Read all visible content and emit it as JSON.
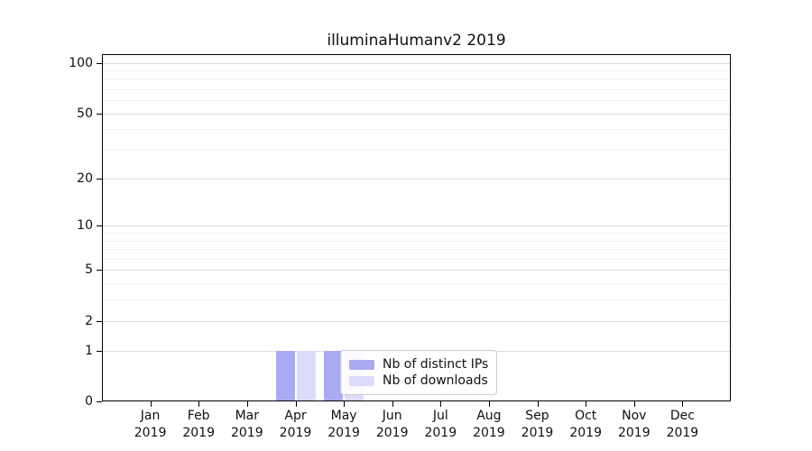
{
  "chart_data": {
    "type": "bar",
    "title": "illuminaHumanv2 2019",
    "categories": [
      "Jan 2019",
      "Feb 2019",
      "Mar 2019",
      "Apr 2019",
      "May 2019",
      "Jun 2019",
      "Jul 2019",
      "Aug 2019",
      "Sep 2019",
      "Oct 2019",
      "Nov 2019",
      "Dec 2019"
    ],
    "series": [
      {
        "name": "Nb of distinct IPs",
        "color": "#aaaaf2",
        "values": [
          0,
          0,
          0,
          1,
          1,
          0,
          0,
          0,
          0,
          0,
          0,
          0
        ]
      },
      {
        "name": "Nb of downloads",
        "color": "#dcdcfa",
        "values": [
          0,
          0,
          0,
          1,
          1,
          0,
          0,
          0,
          0,
          0,
          0,
          0
        ]
      }
    ],
    "xlabel": "",
    "ylabel": "",
    "yscale": "log1p",
    "ylim": [
      0,
      113
    ],
    "yticks_major": [
      0,
      1,
      2,
      5,
      10,
      20,
      50,
      100
    ],
    "yticks_minor": [
      3,
      4,
      6,
      7,
      8,
      9,
      30,
      40,
      60,
      70,
      80,
      90
    ],
    "grid": "horizontal",
    "legend_position": "center",
    "axis_color": "#000000",
    "grid_major_color": "#dcdcdc",
    "grid_minor_color": "#f2f2f2",
    "background_color": "#ffffff"
  }
}
